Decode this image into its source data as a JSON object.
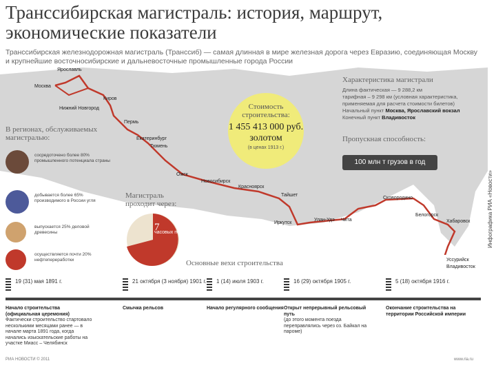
{
  "header": {
    "title": "Транссибирская магистраль: история, маршрут, экономические показатели",
    "subtitle": "Транссибирская железнодорожная магистраль (Транссиб) — самая длинная в мире железная дорога через Евразию, соединяющая Москву и крупнейшие восточносибирские и дальневосточные промышленные города России"
  },
  "cities": {
    "yaroslavl": "Ярославль",
    "moskva": "Москва",
    "kirov": "Киров",
    "nizhny": "Нижний Новгород",
    "perm": "Пермь",
    "ekaterinburg": "Екатеринбург",
    "tyumen": "Тюмень",
    "omsk": "Омск",
    "novosibirsk": "Новосибирск",
    "krasnoyarsk": "Красноярск",
    "tayshet": "Тайшет",
    "irkutsk": "Иркутск",
    "ulanude": "Улан-Удэ",
    "chita": "Чита",
    "skovorodino": "Сковородино",
    "belogorsk": "Белогорск",
    "khabarovsk": "Хабаровск",
    "ussuriysk": "Уссурийск",
    "vladivostok": "Владивосток"
  },
  "cost": {
    "heading": "Стоимость строительства:",
    "value": "1 455 413 000 руб. золотом",
    "note": "(в ценах 1913 г.)"
  },
  "characteristics": {
    "title": "Характеристика магистрали",
    "length_actual": "Длина фактическая — 9 288,2 км",
    "length_tariff": "тарифная – 9 298 км (условная характеристика, применяемая для расчета стоимости билетов)",
    "start_label": "Начальный пункт",
    "start_value": "Москва, Ярославский вокзал",
    "end_label": "Конечный пункт",
    "end_value": "Владивосток"
  },
  "capacity": {
    "title": "Пропускная способность:",
    "value": "100 млн т грузов в год"
  },
  "regions": {
    "title": "В регионах, обслуживаемых магистралью:",
    "items": [
      {
        "text": "сосредоточено более 80% промышленного потенциала страны",
        "color": "#6b4a3a"
      },
      {
        "text": "добывается более 65% производимого в России угля",
        "color": "#4d5a9a"
      },
      {
        "text": "выпускается 25% деловой древесины",
        "color": "#cfa26e"
      },
      {
        "text": "осуществляется почти 20% нефтепереработки",
        "color": "#c0392b"
      }
    ]
  },
  "pie": {
    "title": "Магистраль проходит через:",
    "number": "7",
    "label": "часовых поясов"
  },
  "milestones": {
    "title": "Основные вехи строительства",
    "items": [
      {
        "date": "19 (31) мая 1891 г.",
        "event_bold": "Начало строительства (официальная церемония)",
        "event_text": "Фактически строительство стартовало несколькими месяцами ранее — в начале марта 1891 года, когда начались изыскательские работы на участке Миасс – Челябинск"
      },
      {
        "date": "21 октября (3 ноября) 1901 г.",
        "event_bold": "Смычка рельсов",
        "event_text": ""
      },
      {
        "date": "1 (14) июля 1903 г.",
        "event_bold": "Начало регулярного сообщения",
        "event_text": ""
      },
      {
        "date": "16 (29) октября 1905 г.",
        "event_bold": "Открыт непрерывный рельсовый путь",
        "event_text": "(до этого момента поезда переправлялись через оз. Байкал на пароме)"
      },
      {
        "date": "5 (18) октября 1916 г.",
        "event_bold": "Окончание строительства на территории Российской империи",
        "event_text": ""
      }
    ]
  },
  "footer": {
    "left": "РИА НОВОСТИ © 2011",
    "right": "www.ria.ru",
    "vertical": "Инфографика РИА «Новости»"
  }
}
